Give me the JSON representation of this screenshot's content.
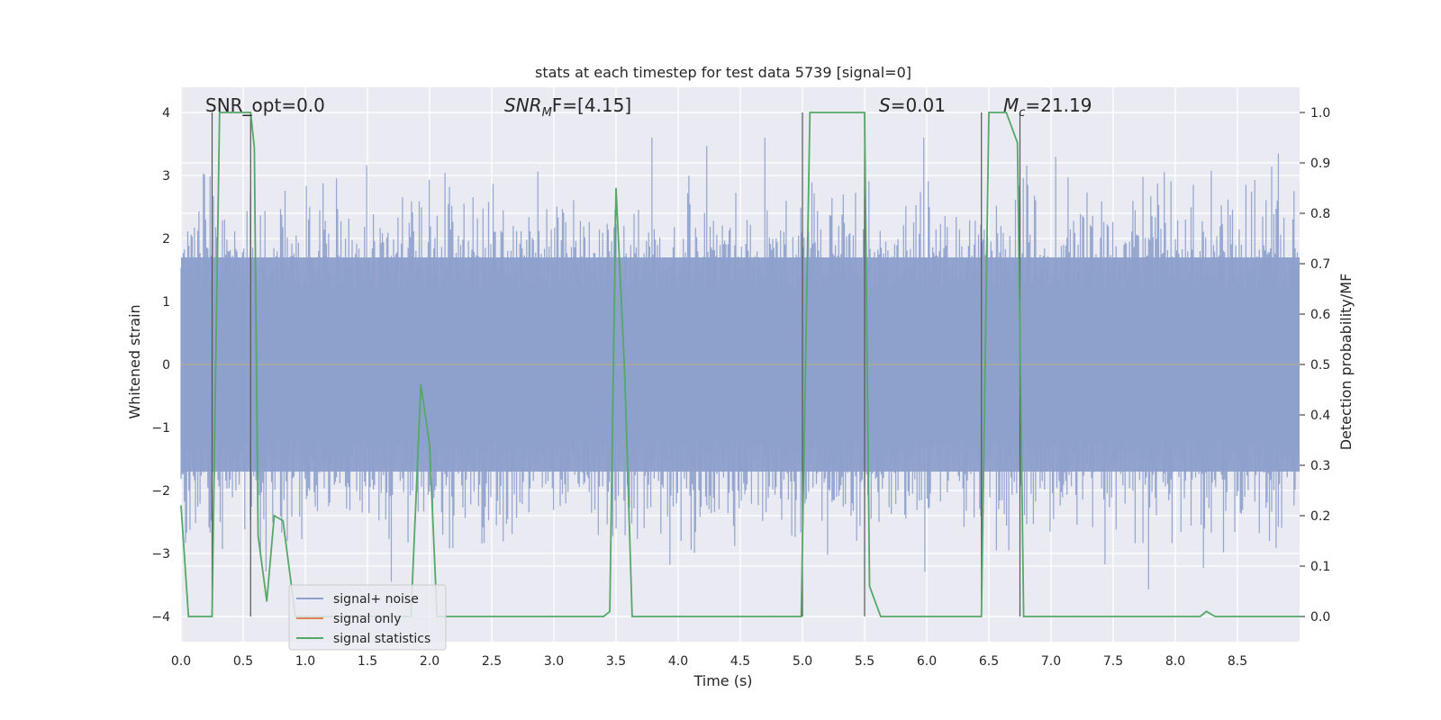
{
  "chart_data": {
    "type": "line",
    "title": "stats at each timestep for test data 5739 [signal=0]",
    "xlabel": "Time (s)",
    "ylabel_left": "Whitened strain",
    "ylabel_right": "Detection probability/MF",
    "xlim": [
      0,
      9.0
    ],
    "ylim_left": [
      -4.4,
      4.4
    ],
    "ylim_right": [
      -0.05,
      1.05
    ],
    "x_ticks": [
      0.0,
      0.5,
      1.0,
      1.5,
      2.0,
      2.5,
      3.0,
      3.5,
      4.0,
      4.5,
      5.0,
      5.5,
      6.0,
      6.5,
      7.0,
      7.5,
      8.0,
      8.5
    ],
    "x_tick_labels": [
      "0.0",
      "0.5",
      "1.0",
      "1.5",
      "2.0",
      "2.5",
      "3.0",
      "3.5",
      "4.0",
      "4.5",
      "5.0",
      "5.5",
      "6.0",
      "6.5",
      "7.0",
      "7.5",
      "8.0",
      "8.5"
    ],
    "y_left_ticks": [
      4,
      3,
      2,
      1,
      0,
      -1,
      -2,
      -3,
      -4
    ],
    "y_left_tick_labels": [
      "4",
      "3",
      "2",
      "1",
      "0",
      "−1",
      "−2",
      "−3",
      "−4"
    ],
    "y_right_ticks": [
      1.0,
      0.9,
      0.8,
      0.7,
      0.6,
      0.5,
      0.4,
      0.3,
      0.2,
      0.1,
      0.0
    ],
    "y_right_tick_labels": [
      "1.0",
      "0.9",
      "0.8",
      "0.7",
      "0.6",
      "0.5",
      "0.4",
      "0.3",
      "0.2",
      "0.1",
      "0.0"
    ],
    "annotations": {
      "snr_opt": "SNR_opt=0.0",
      "snr_mf_prefix": "SNR",
      "snr_mf_sub": "M",
      "snr_mf_suffix": "F=[4.15]",
      "s_prefix": "S",
      "s_suffix": "=0.01",
      "mc_prefix": "M",
      "mc_sub": "c",
      "mc_suffix": "=21.19"
    },
    "legend": {
      "placement": "lower-left",
      "entries": [
        {
          "label": "signal+ noise",
          "color": "#8da0cb"
        },
        {
          "label": "signal only",
          "color": "#dd8452"
        },
        {
          "label": "signal statistics",
          "color": "#55a868"
        }
      ]
    },
    "series": [
      {
        "name": "signal+ noise",
        "axis": "left",
        "style": "noise",
        "color": "#8da0cb",
        "core_band": [
          -1.7,
          1.7
        ],
        "peak_range": [
          -3.9,
          3.6
        ]
      },
      {
        "name": "signal only",
        "axis": "left",
        "color": "#dd8452",
        "x": [
          0,
          9.0
        ],
        "y": [
          0,
          0
        ]
      },
      {
        "name": "signal statistics",
        "axis": "right",
        "color": "#55a868",
        "x": [
          0.0,
          0.06,
          0.25,
          0.27,
          0.31,
          0.56,
          0.59,
          0.62,
          0.69,
          0.75,
          0.82,
          0.92,
          1.5,
          1.85,
          1.93,
          2.0,
          2.06,
          3.4,
          3.45,
          3.5,
          3.57,
          3.63,
          4.8,
          4.99,
          5.06,
          5.5,
          5.54,
          5.63,
          6.44,
          6.5,
          6.64,
          6.73,
          6.78,
          7.2,
          8.2,
          8.25,
          8.32,
          8.5,
          9.0
        ],
        "y": [
          0.22,
          0.0,
          0.0,
          0.35,
          1.0,
          1.0,
          0.93,
          0.16,
          0.03,
          0.2,
          0.19,
          0.0,
          0.0,
          0.0,
          0.46,
          0.34,
          0.0,
          0.0,
          0.01,
          0.85,
          0.48,
          0.0,
          0.0,
          0.0,
          1.0,
          1.0,
          0.06,
          0.0,
          0.0,
          1.0,
          1.0,
          0.94,
          0.0,
          0.0,
          0.0,
          0.01,
          0.0,
          0.0,
          0.0
        ]
      }
    ],
    "markers": {
      "style": "vertical-lines",
      "color": "#555555",
      "x": [
        0.25,
        0.56,
        5.0,
        5.5,
        6.44,
        6.75
      ]
    },
    "horizontal_reference": {
      "axis": "left",
      "value": 0,
      "color": "#a6a6a6"
    }
  }
}
